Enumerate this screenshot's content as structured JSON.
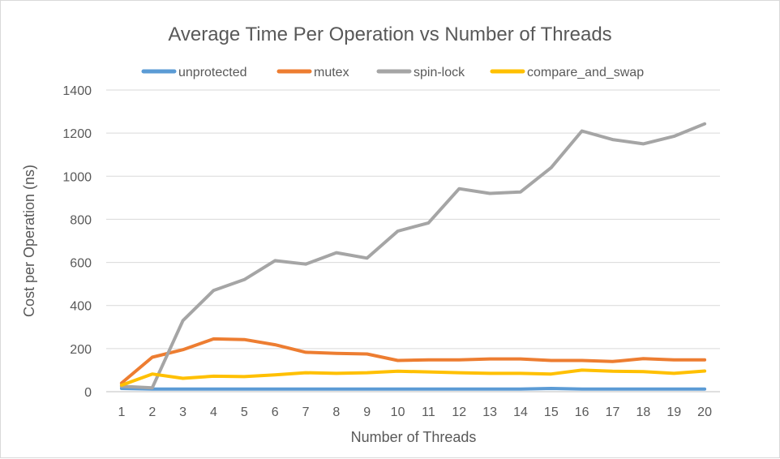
{
  "chart_data": {
    "type": "line",
    "title": "Average Time Per Operation vs Number of Threads",
    "xlabel": "Number of Threads",
    "ylabel": "Cost per Operation (ns)",
    "categories": [
      "1",
      "2",
      "3",
      "4",
      "5",
      "6",
      "7",
      "8",
      "9",
      "10",
      "11",
      "12",
      "13",
      "14",
      "15",
      "16",
      "17",
      "18",
      "19",
      "20"
    ],
    "ylim": [
      0,
      1400
    ],
    "yticks": [
      "0",
      "200",
      "400",
      "600",
      "800",
      "1000",
      "1200",
      "1400"
    ],
    "grid": true,
    "legend_position": "top",
    "series": [
      {
        "name": "unprotected",
        "color": "#5b9bd5",
        "values": [
          15,
          12,
          12,
          12,
          12,
          12,
          12,
          12,
          12,
          12,
          12,
          12,
          12,
          12,
          15,
          12,
          12,
          12,
          12,
          12
        ]
      },
      {
        "name": "mutex",
        "color": "#ed7d31",
        "values": [
          40,
          160,
          195,
          245,
          242,
          218,
          183,
          178,
          175,
          145,
          148,
          148,
          152,
          152,
          145,
          145,
          140,
          153,
          148,
          148
        ]
      },
      {
        "name": "spin-lock",
        "color": "#a5a5a5",
        "values": [
          25,
          18,
          330,
          470,
          520,
          608,
          592,
          645,
          620,
          745,
          783,
          942,
          920,
          927,
          1040,
          1210,
          1170,
          1150,
          1185,
          1243
        ]
      },
      {
        "name": "compare_and_swap",
        "color": "#ffc000",
        "values": [
          30,
          82,
          62,
          72,
          70,
          78,
          88,
          85,
          88,
          95,
          92,
          88,
          85,
          85,
          82,
          100,
          95,
          93,
          85,
          96
        ]
      }
    ]
  }
}
